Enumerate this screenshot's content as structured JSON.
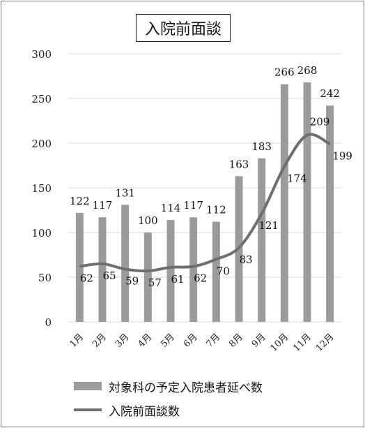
{
  "chart_data": {
    "type": "bar",
    "title": "入院前面談",
    "categories": [
      "1月",
      "2月",
      "3月",
      "4月",
      "5月",
      "6月",
      "7月",
      "8月",
      "9月",
      "10月",
      "11月",
      "12月"
    ],
    "series": [
      {
        "name": "対象科の予定入院患者延べ数",
        "type": "bar",
        "values": [
          122,
          117,
          131,
          100,
          114,
          117,
          112,
          163,
          183,
          266,
          268,
          242
        ]
      },
      {
        "name": "入院前面談数",
        "type": "line",
        "values": [
          62,
          65,
          59,
          57,
          61,
          62,
          70,
          83,
          121,
          174,
          209,
          199
        ]
      }
    ],
    "y_ticks": [
      "0",
      "50",
      "100",
      "150",
      "200",
      "250",
      "300"
    ],
    "ylim": [
      0,
      300
    ],
    "grid": true,
    "legend": "bottom-left",
    "colors": {
      "bar": "#9b9b9b",
      "line": "#6e6e6e",
      "grid": "#d9d9d9"
    }
  }
}
